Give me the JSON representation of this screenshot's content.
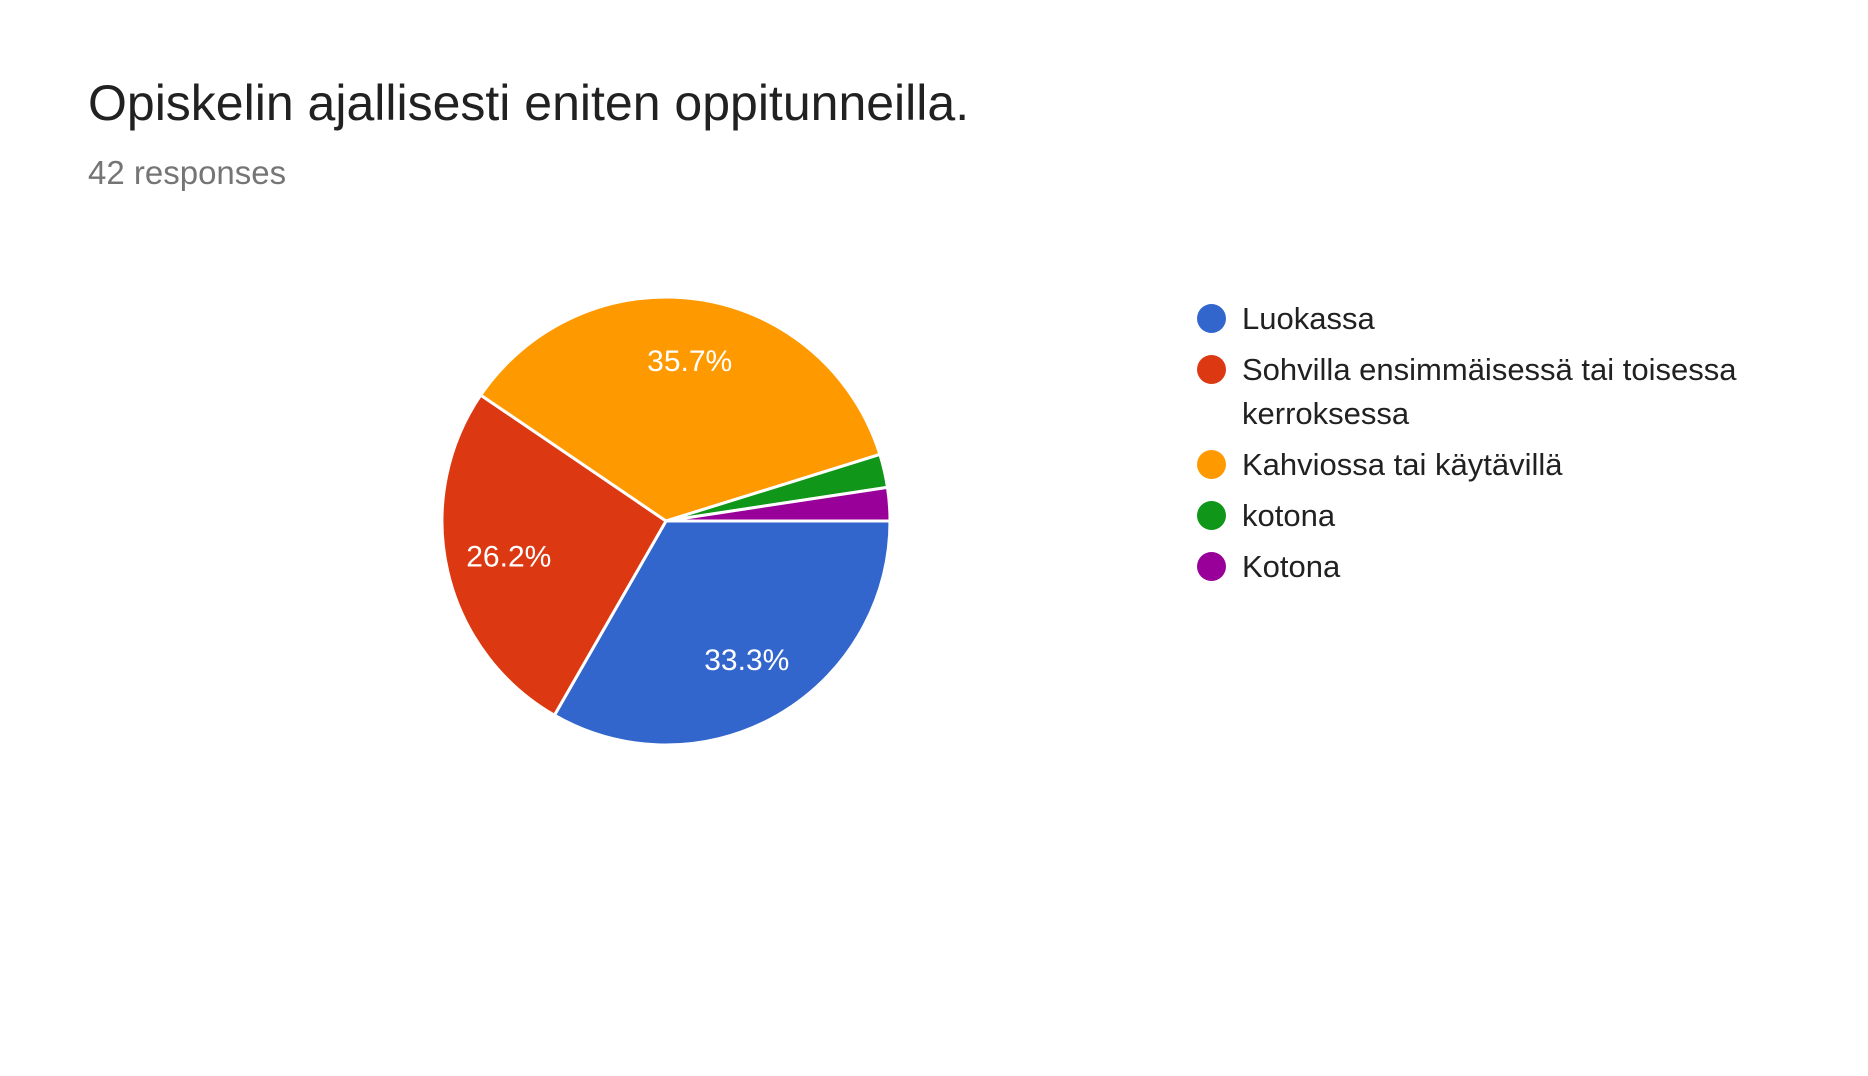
{
  "chart_data": {
    "type": "pie",
    "title": "Opiskelin ajallisesti eniten oppitunneilla.",
    "subtitle": "42 responses",
    "categories": [
      "Luokassa",
      "Sohvilla ensimmäisessä tai toisessa kerroksessa",
      "Kahviossa tai käytävillä",
      "kotona",
      "Kotona"
    ],
    "values": [
      33.3,
      26.2,
      35.7,
      2.4,
      2.4
    ],
    "slice_labels": [
      "33.3%",
      "26.2%",
      "35.7%",
      "",
      ""
    ],
    "colors": [
      "#3366CC",
      "#DC3912",
      "#FF9900",
      "#109618",
      "#990099"
    ],
    "start_angle_deg": 0,
    "direction": "clockwise",
    "legend_position": "right",
    "slice_label_color": "#ffffff",
    "slice_stroke_color": "#ffffff",
    "grid": false
  },
  "theme": {
    "background": "#ffffff",
    "title_color": "#212121",
    "subtitle_color": "#757575",
    "legend_text_color": "#212121"
  }
}
